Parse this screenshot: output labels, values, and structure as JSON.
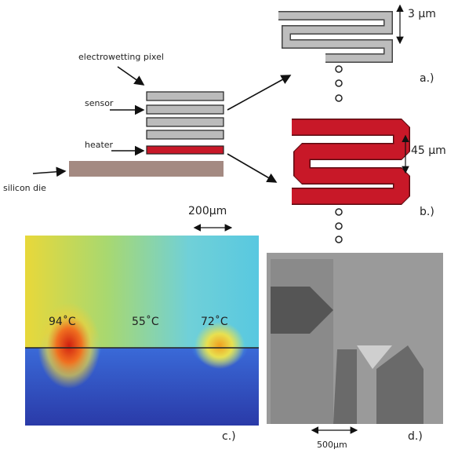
{
  "labels": {
    "pixel": "electrowetting pixel",
    "sensor": "sensor",
    "heater": "heater",
    "die": "silicon die"
  },
  "panel_a": {
    "width": "3 µm",
    "tag": "a.)"
  },
  "panel_b": {
    "width": "45 µm",
    "tag": "b.)"
  },
  "panel_c": {
    "scale": "200µm",
    "temps": [
      "94˚C",
      "55˚C",
      "72˚C"
    ],
    "tag": "c.)"
  },
  "panel_d": {
    "scale": "500µm",
    "tag": "d.)"
  }
}
